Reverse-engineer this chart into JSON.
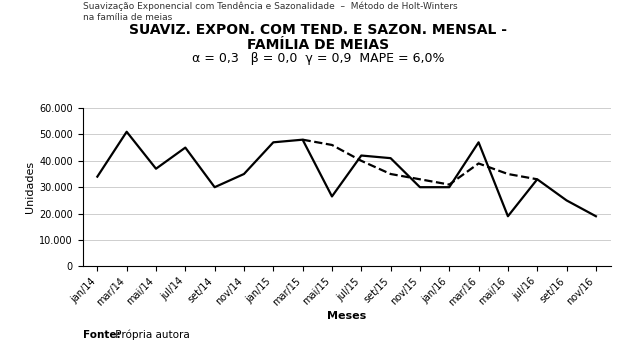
{
  "title_line1": "SUAVIZ. EXPON. COM TEND. E SAZON. MENSAL -",
  "title_line2": "FAMÍLIA DE MEIAS",
  "subtitle": "α = 0,3   β = 0,0  γ = 0,9  MAPE = 6,0%",
  "xlabel": "Meses",
  "ylabel": "Unidades",
  "ylim": [
    0,
    60000
  ],
  "yticks": [
    0,
    10000,
    20000,
    30000,
    40000,
    50000,
    60000
  ],
  "ytick_labels": [
    "0",
    "10.000",
    "20.000",
    "30.000",
    "40.000",
    "50.000",
    "60.000"
  ],
  "xtick_labels": [
    "jan/14",
    "mar/14",
    "mai/14",
    "jul/14",
    "set/14",
    "nov/14",
    "jan/15",
    "mar/15",
    "mai/15",
    "jul/15",
    "set/15",
    "nov/15",
    "jan/16",
    "mar/16",
    "mai/16",
    "jul/16",
    "set/16",
    "nov/16"
  ],
  "demanda_x": [
    0,
    1,
    2,
    3,
    4,
    5,
    6,
    7,
    8,
    9,
    10,
    11,
    12,
    13,
    14,
    15,
    16,
    17
  ],
  "demanda_y": [
    34000,
    51000,
    37000,
    45000,
    30000,
    35000,
    47000,
    48000,
    26500,
    42000,
    41000,
    30000,
    30000,
    47000,
    19000,
    33000,
    25000,
    19000
  ],
  "previsao_x": [
    7,
    8,
    9,
    10,
    11,
    12,
    13,
    14,
    15
  ],
  "previsao_y": [
    48000,
    46000,
    40000,
    35000,
    33000,
    31000,
    39000,
    35000,
    33000
  ],
  "line_color": "#000000",
  "background_color": "#ffffff",
  "grid_color": "#bbbbbb",
  "title_fontsize": 10,
  "subtitle_fontsize": 9,
  "tick_fontsize": 7,
  "label_fontsize": 8,
  "legend_fontsize": 8,
  "header_text1": "Suavização Exponencial com Tendência e Sazonalidade  –  Método de Holt-Winters",
  "header_text2": "na família de meias",
  "fonte_bold": "Fonte:",
  "fonte_normal": " Própria autora"
}
